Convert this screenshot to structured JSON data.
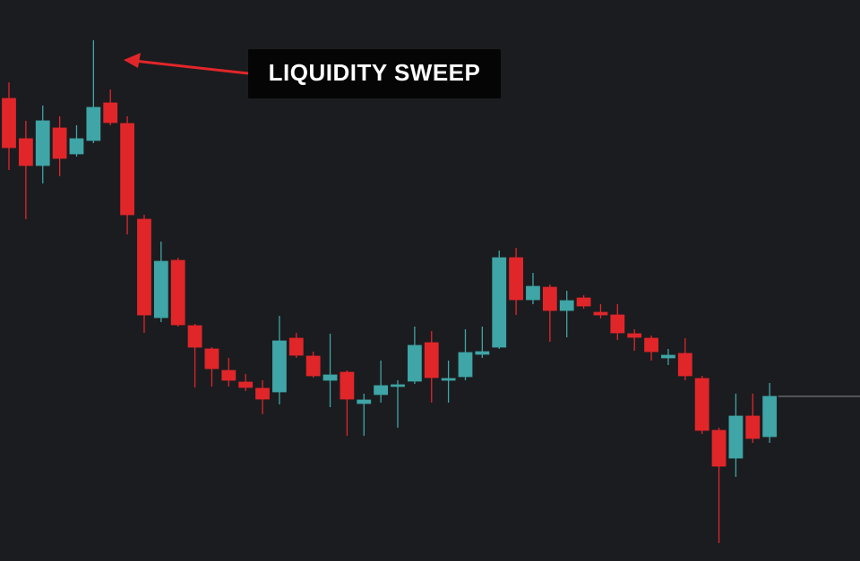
{
  "chart_data": {
    "type": "candlestick",
    "annotation": "LIQUIDITY SWEEP",
    "up_color": "#3fa5a6",
    "down_color": "#e1262a",
    "price_line_color": "#8a8c90",
    "ylim": [
      0,
      627
    ],
    "series": {
      "open": [
        517,
        472,
        442,
        484,
        455,
        470,
        512,
        489,
        382,
        272,
        336,
        263,
        237,
        213,
        200,
        193,
        189,
        249,
        229,
        202,
        211,
        176,
        186,
        195,
        201,
        244,
        203,
        206,
        231,
        239,
        339,
        292,
        306,
        280,
        294,
        278,
        275,
        254,
        249,
        227,
        232,
        204,
        146,
        115,
        162,
        139
      ],
      "high": [
        535,
        492,
        509,
        497,
        487,
        582,
        527,
        497,
        387,
        357,
        339,
        265,
        239,
        227,
        209,
        202,
        274,
        255,
        234,
        254,
        213,
        187,
        224,
        202,
        262,
        257,
        224,
        259,
        262,
        347,
        350,
        322,
        309,
        302,
        297,
        287,
        287,
        259,
        252,
        237,
        249,
        207,
        149,
        187,
        187,
        199
      ],
      "low": [
        437,
        382,
        422,
        430,
        452,
        467,
        487,
        365,
        255,
        267,
        262,
        194,
        195,
        195,
        190,
        164,
        175,
        227,
        205,
        172,
        140,
        140,
        177,
        149,
        198,
        177,
        177,
        202,
        227,
        237,
        275,
        287,
        245,
        250,
        282,
        271,
        247,
        235,
        224,
        219,
        202,
        142,
        20,
        94,
        132,
        132
      ],
      "close": [
        462,
        442,
        492,
        450,
        472,
        507,
        490,
        387,
        275,
        335,
        264,
        239,
        215,
        202,
        194,
        181,
        246,
        230,
        207,
        208,
        181,
        180,
        196,
        197,
        241,
        205,
        204,
        233,
        234,
        339,
        292,
        307,
        280,
        291,
        285,
        275,
        255,
        250,
        234,
        230,
        207,
        146,
        106,
        162,
        137,
        184
      ]
    }
  }
}
